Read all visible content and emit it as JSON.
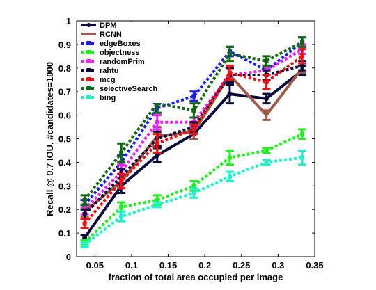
{
  "chart_data": {
    "type": "line",
    "title": "",
    "xlabel": "fraction of total area occupied per image",
    "ylabel": "Recall @ 0.7 IOU, #candidates=1000",
    "xlim": [
      0.025,
      0.35
    ],
    "ylim": [
      0,
      1
    ],
    "xticks": [
      "0.05",
      "0.1",
      "0.15",
      "0.2",
      "0.25",
      "0.3",
      "0.35"
    ],
    "yticks": [
      "0",
      "0.1",
      "0.2",
      "0.3",
      "0.4",
      "0.5",
      "0.6",
      "0.7",
      "0.8",
      "0.9",
      "1"
    ],
    "grid": false,
    "legend_position": "top-left",
    "x": [
      0.036,
      0.086,
      0.135,
      0.185,
      0.234,
      0.284,
      0.333
    ],
    "series": [
      {
        "name": "DPM",
        "color": "#0b0b3b",
        "style": "solid",
        "marker": "circle",
        "values": [
          0.08,
          0.3,
          0.43,
          0.52,
          0.69,
          0.67,
          0.79
        ],
        "errors": [
          0.01,
          0.03,
          0.03,
          0.02,
          0.04,
          0.02,
          0.02
        ]
      },
      {
        "name": "RCNN",
        "color": "#a05a4a",
        "style": "solid",
        "marker": "none",
        "values": [
          0.19,
          0.32,
          0.51,
          0.53,
          0.77,
          0.6,
          0.8
        ],
        "errors": [
          0.02,
          0.03,
          0.04,
          0.03,
          0.03,
          0.02,
          0.02
        ]
      },
      {
        "name": "edgeBoxes",
        "color": "#1c1cf0",
        "style": "dotted",
        "marker": "square",
        "values": [
          0.22,
          0.4,
          0.63,
          0.68,
          0.87,
          0.79,
          0.91
        ],
        "errors": [
          0.02,
          0.03,
          0.02,
          0.02,
          0.02,
          0.02,
          0.02
        ]
      },
      {
        "name": "objectness",
        "color": "#22ee22",
        "style": "dotted",
        "marker": "square",
        "values": [
          0.06,
          0.21,
          0.24,
          0.3,
          0.42,
          0.45,
          0.52
        ],
        "errors": [
          0.01,
          0.02,
          0.02,
          0.02,
          0.03,
          0.01,
          0.02
        ]
      },
      {
        "name": "randomPrim",
        "color": "#ee22ee",
        "style": "dotted",
        "marker": "square",
        "values": [
          0.2,
          0.36,
          0.57,
          0.57,
          0.77,
          0.79,
          0.88
        ],
        "errors": [
          0.02,
          0.03,
          0.03,
          0.02,
          0.03,
          0.02,
          0.02
        ]
      },
      {
        "name": "rahtu",
        "color": "#0b0b3b",
        "style": "dotted",
        "marker": "square",
        "values": [
          0.18,
          0.34,
          0.5,
          0.55,
          0.77,
          0.77,
          0.81
        ],
        "errors": [
          0.02,
          0.03,
          0.03,
          0.02,
          0.03,
          0.02,
          0.02
        ]
      },
      {
        "name": "mcg",
        "color": "#ee1111",
        "style": "dotted",
        "marker": "square",
        "values": [
          0.14,
          0.32,
          0.48,
          0.54,
          0.78,
          0.74,
          0.85
        ],
        "errors": [
          0.02,
          0.03,
          0.04,
          0.02,
          0.03,
          0.03,
          0.03
        ]
      },
      {
        "name": "selectiveSearch",
        "color": "#116611",
        "style": "dotted",
        "marker": "square",
        "values": [
          0.24,
          0.44,
          0.65,
          0.62,
          0.86,
          0.83,
          0.91
        ],
        "errors": [
          0.02,
          0.04,
          0.04,
          0.03,
          0.03,
          0.02,
          0.02
        ]
      },
      {
        "name": "bing",
        "color": "#22eecc",
        "style": "dotted",
        "marker": "square",
        "values": [
          0.05,
          0.17,
          0.22,
          0.27,
          0.34,
          0.4,
          0.42
        ],
        "errors": [
          0.01,
          0.02,
          0.01,
          0.02,
          0.02,
          0.01,
          0.03
        ]
      }
    ]
  }
}
